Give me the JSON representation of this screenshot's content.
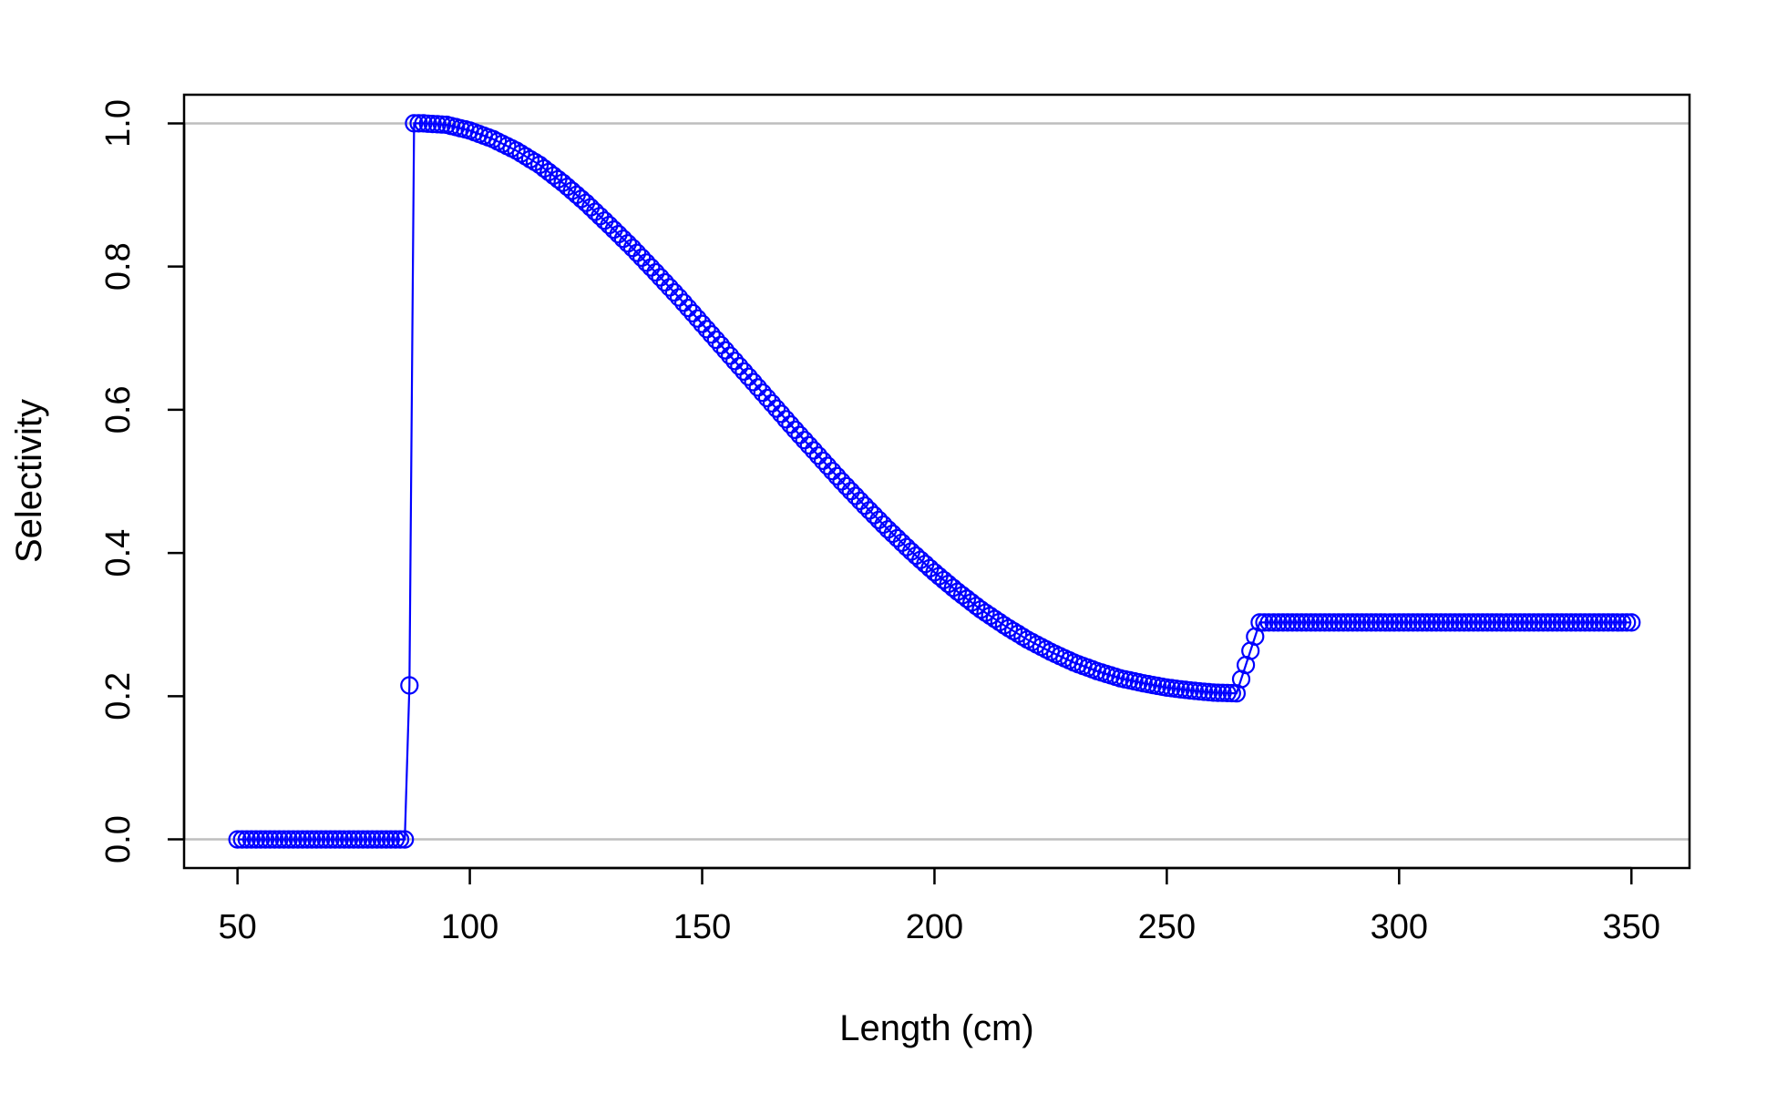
{
  "chart_data": {
    "type": "line",
    "xlabel": "Length (cm)",
    "ylabel": "Selectivity",
    "xlim": [
      38.5,
      362.5
    ],
    "ylim": [
      -0.04,
      1.04
    ],
    "x_ticks": [
      50,
      100,
      150,
      200,
      250,
      300,
      350
    ],
    "y_ticks": [
      0.0,
      0.2,
      0.4,
      0.6,
      0.8,
      1.0
    ],
    "x_tick_labels": [
      "50",
      "100",
      "150",
      "200",
      "250",
      "300",
      "350"
    ],
    "y_tick_labels": [
      "0.0",
      "0.2",
      "0.4",
      "0.6",
      "0.8",
      "1.0"
    ],
    "reference_lines_y": [
      0,
      1
    ],
    "grid": false,
    "marker": "open-circle",
    "series_color": "#0000ff",
    "reference_line_color": "#bebebe",
    "series": [
      {
        "x": [
          50,
          55,
          60,
          65,
          70,
          75,
          80,
          85,
          86,
          87,
          88,
          90,
          95,
          100,
          105,
          110,
          115,
          120,
          125,
          130,
          135,
          140,
          145,
          150,
          155,
          160,
          165,
          170,
          175,
          180,
          185,
          190,
          195,
          200,
          205,
          210,
          215,
          220,
          225,
          230,
          235,
          240,
          245,
          250,
          255,
          260,
          265,
          270,
          275,
          280,
          285,
          290,
          295,
          300,
          305,
          310,
          315,
          320,
          325,
          330,
          335,
          340,
          345,
          350
        ],
        "y": [
          0,
          0,
          0,
          0,
          0,
          0,
          0,
          0,
          0,
          0.215,
          1.0,
          1.0,
          0.998,
          0.99,
          0.978,
          0.962,
          0.942,
          0.917,
          0.889,
          0.858,
          0.826,
          0.792,
          0.757,
          0.72,
          0.683,
          0.646,
          0.609,
          0.572,
          0.536,
          0.5,
          0.466,
          0.433,
          0.402,
          0.373,
          0.346,
          0.321,
          0.299,
          0.279,
          0.262,
          0.247,
          0.235,
          0.225,
          0.218,
          0.212,
          0.208,
          0.205,
          0.204,
          0.303,
          0.303,
          0.303,
          0.303,
          0.303,
          0.303,
          0.303,
          0.303,
          0.303,
          0.303,
          0.303,
          0.303,
          0.303,
          0.303,
          0.303,
          0.303,
          0.303
        ]
      }
    ]
  }
}
